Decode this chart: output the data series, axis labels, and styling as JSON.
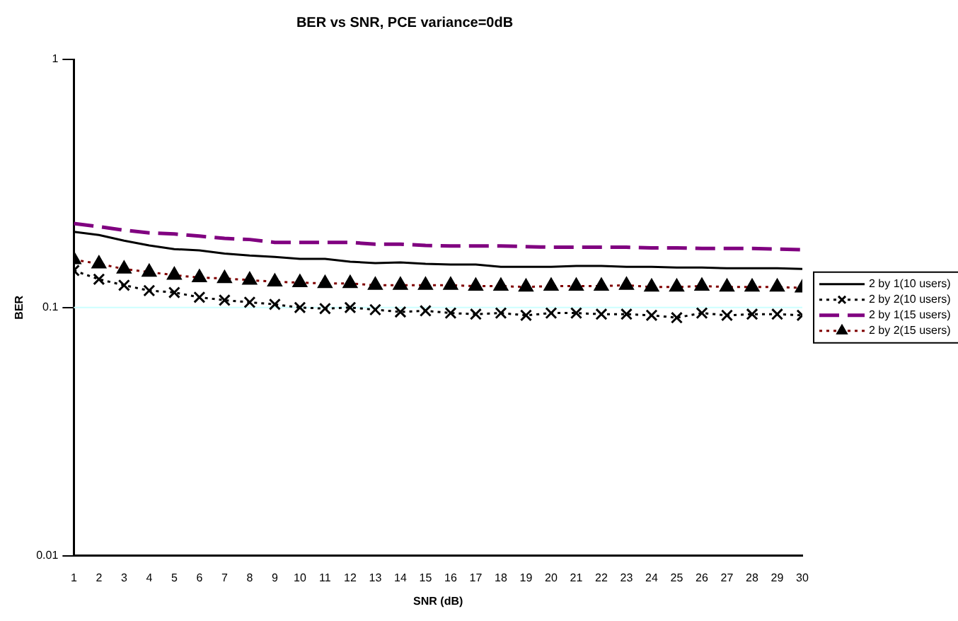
{
  "chart_data": {
    "type": "line",
    "title": "BER vs SNR, PCE variance=0dB",
    "xlabel": "SNR (dB)",
    "ylabel": "BER",
    "x": [
      1,
      2,
      3,
      4,
      5,
      6,
      7,
      8,
      9,
      10,
      11,
      12,
      13,
      14,
      15,
      16,
      17,
      18,
      19,
      20,
      21,
      22,
      23,
      24,
      25,
      26,
      27,
      28,
      29,
      30
    ],
    "xlim": [
      1,
      30
    ],
    "xticks": [
      1,
      2,
      3,
      4,
      5,
      6,
      7,
      8,
      9,
      10,
      11,
      12,
      13,
      14,
      15,
      16,
      17,
      18,
      19,
      20,
      21,
      22,
      23,
      24,
      25,
      26,
      27,
      28,
      29,
      30
    ],
    "ylim": [
      0.01,
      1
    ],
    "yticks": [
      0.01,
      0.1,
      1
    ],
    "log": "y",
    "legend": "right",
    "ref_lines": [
      {
        "axis": "y",
        "value": 0.1,
        "color": "#ccffff"
      }
    ],
    "series": [
      {
        "name": "2 by 1(10 users)",
        "color": "#000000",
        "line_style": "solid",
        "marker": "none",
        "values": [
          0.202,
          0.196,
          0.186,
          0.178,
          0.172,
          0.17,
          0.165,
          0.162,
          0.16,
          0.157,
          0.157,
          0.153,
          0.151,
          0.152,
          0.15,
          0.149,
          0.149,
          0.146,
          0.146,
          0.146,
          0.147,
          0.147,
          0.146,
          0.146,
          0.145,
          0.145,
          0.144,
          0.144,
          0.144,
          0.143
        ]
      },
      {
        "name": "2 by 2(10 users)",
        "color": "#000000",
        "line_style": "dotted",
        "marker": "cross",
        "values": [
          0.141,
          0.13,
          0.123,
          0.117,
          0.115,
          0.11,
          0.107,
          0.105,
          0.103,
          0.1,
          0.099,
          0.1,
          0.098,
          0.096,
          0.097,
          0.095,
          0.094,
          0.095,
          0.093,
          0.095,
          0.095,
          0.094,
          0.094,
          0.093,
          0.091,
          0.095,
          0.093,
          0.094,
          0.094,
          0.093
        ]
      },
      {
        "name": "2 by 1(15 users)",
        "color": "#800080",
        "line_style": "dashed",
        "marker": "none",
        "values": [
          0.218,
          0.212,
          0.205,
          0.2,
          0.198,
          0.194,
          0.19,
          0.188,
          0.183,
          0.183,
          0.183,
          0.183,
          0.18,
          0.18,
          0.178,
          0.177,
          0.177,
          0.177,
          0.176,
          0.175,
          0.175,
          0.175,
          0.175,
          0.174,
          0.174,
          0.173,
          0.173,
          0.173,
          0.172,
          0.171
        ]
      },
      {
        "name": "2 by 2(15 users)",
        "color": "#800000",
        "line_style": "dotted",
        "marker": "triangle",
        "values": [
          0.156,
          0.15,
          0.143,
          0.139,
          0.135,
          0.132,
          0.131,
          0.129,
          0.127,
          0.126,
          0.125,
          0.125,
          0.123,
          0.123,
          0.123,
          0.123,
          0.122,
          0.122,
          0.121,
          0.122,
          0.122,
          0.122,
          0.123,
          0.121,
          0.121,
          0.122,
          0.121,
          0.121,
          0.121,
          0.12
        ]
      }
    ]
  }
}
